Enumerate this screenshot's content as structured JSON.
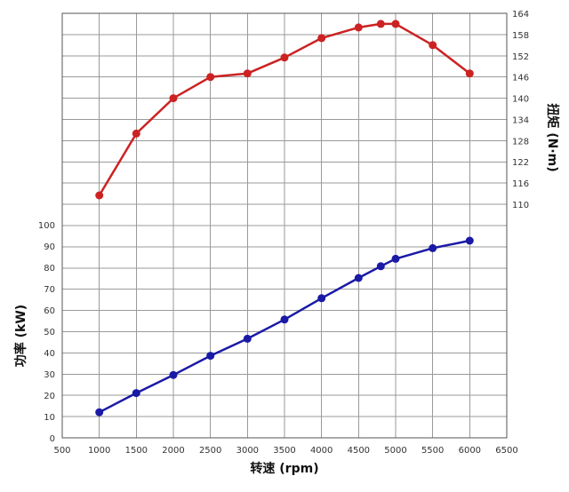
{
  "chart_data": {
    "type": "line",
    "grid": true,
    "x": [
      1000,
      1500,
      2000,
      2500,
      3000,
      3500,
      4000,
      4500,
      4800,
      5000,
      5500,
      6000
    ],
    "xlabel": "转速 (rpm)",
    "xlim": [
      500,
      6500
    ],
    "xticks": [
      "500",
      "1000",
      "1500",
      "2000",
      "2500",
      "3000",
      "3500",
      "4000",
      "4500",
      "5000",
      "5500",
      "6000",
      "6500"
    ],
    "series": [
      {
        "axis": "right",
        "color": "#cc2222",
        "values": [
          112.5,
          130,
          140,
          146,
          147,
          151.5,
          157,
          160,
          161,
          161,
          155,
          147
        ]
      },
      {
        "axis": "left",
        "color": "#1a1aa6",
        "values": [
          12,
          21,
          29.5,
          38.5,
          46.5,
          55.5,
          65.5,
          75,
          80.5,
          84,
          89,
          92.5
        ]
      }
    ],
    "left_axis": {
      "label": "功率 (kW)",
      "ylim": [
        0,
        100
      ],
      "ticks": [
        "0",
        "10",
        "20",
        "30",
        "40",
        "50",
        "60",
        "70",
        "80",
        "90",
        "100"
      ]
    },
    "right_axis": {
      "label": "扭矩 (N·m)",
      "ylim": [
        110,
        164
      ],
      "ticks": [
        "110",
        "116",
        "122",
        "128",
        "134",
        "140",
        "146",
        "152",
        "158",
        "164"
      ]
    }
  }
}
